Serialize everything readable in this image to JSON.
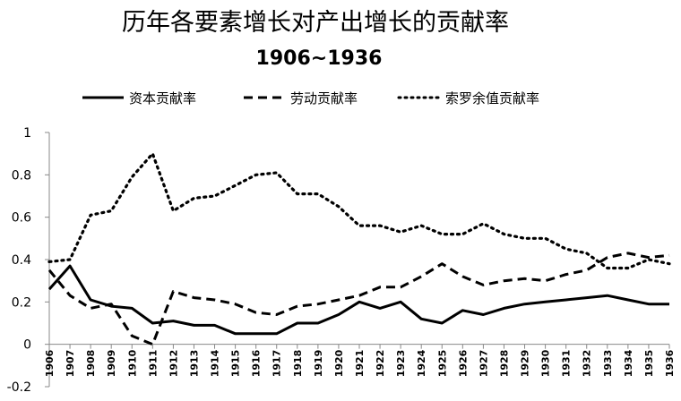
{
  "chart_data": {
    "type": "line",
    "title": "历年各要素增长对产出增长的贡献率",
    "subtitle": "1906~1936",
    "xlabel": "",
    "ylabel": "",
    "ylim": [
      -0.2,
      1
    ],
    "y_ticks": [
      "-0.2",
      "0",
      "0.2",
      "0.4",
      "0.6",
      "0.8",
      "1"
    ],
    "grid": false,
    "legend_position": "top",
    "x": [
      "1906",
      "1907",
      "1908",
      "1909",
      "1910",
      "1911",
      "1912",
      "1913",
      "1914",
      "1915",
      "1916",
      "1917",
      "1918",
      "1919",
      "1920",
      "1921",
      "1922",
      "1923",
      "1924",
      "1925",
      "1926",
      "1927",
      "1928",
      "1929",
      "1930",
      "1931",
      "1932",
      "1933",
      "1934",
      "1935",
      "1936"
    ],
    "series": [
      {
        "name": "资本贡献率",
        "style": "solid",
        "color": "#000000",
        "values": [
          0.26,
          0.37,
          0.21,
          0.18,
          0.17,
          0.1,
          0.11,
          0.09,
          0.09,
          0.05,
          0.05,
          0.05,
          0.1,
          0.1,
          0.14,
          0.2,
          0.17,
          0.2,
          0.12,
          0.1,
          0.16,
          0.14,
          0.17,
          0.19,
          0.2,
          0.21,
          0.22,
          0.23,
          0.21,
          0.19,
          0.19
        ]
      },
      {
        "name": "劳动贡献率",
        "style": "dashed",
        "color": "#000000",
        "values": [
          0.35,
          0.23,
          0.17,
          0.19,
          0.04,
          0.0,
          0.25,
          0.22,
          0.21,
          0.19,
          0.15,
          0.14,
          0.18,
          0.19,
          0.21,
          0.23,
          0.27,
          0.27,
          0.32,
          0.38,
          0.32,
          0.28,
          0.3,
          0.31,
          0.3,
          0.33,
          0.35,
          0.41,
          0.43,
          0.41,
          0.42
        ]
      },
      {
        "name": "索罗余值贡献率",
        "style": "dotted",
        "color": "#000000",
        "values": [
          0.39,
          0.4,
          0.61,
          0.63,
          0.79,
          0.9,
          0.63,
          0.69,
          0.7,
          0.75,
          0.8,
          0.81,
          0.71,
          0.71,
          0.65,
          0.56,
          0.56,
          0.53,
          0.56,
          0.52,
          0.52,
          0.57,
          0.52,
          0.5,
          0.5,
          0.45,
          0.43,
          0.36,
          0.36,
          0.4,
          0.38
        ]
      }
    ]
  }
}
